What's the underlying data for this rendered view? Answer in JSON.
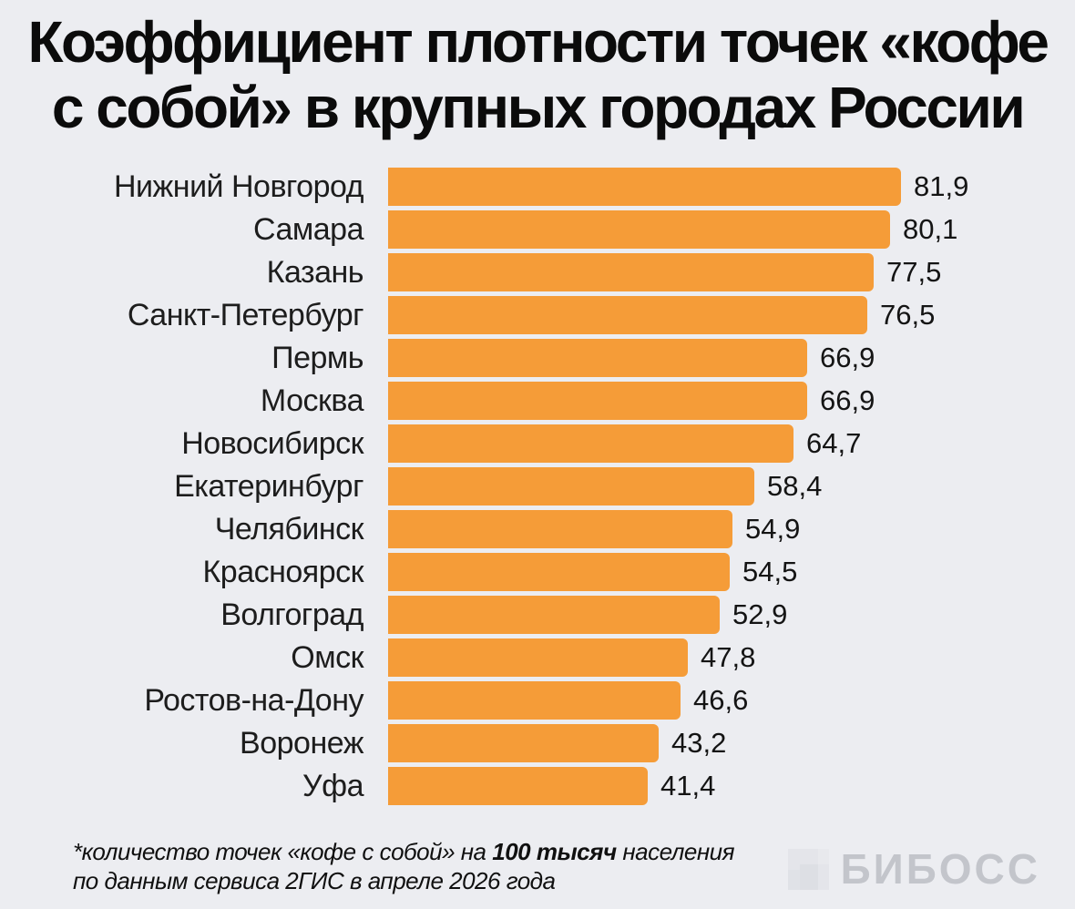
{
  "title": {
    "line1": "Коэффициент плотности точек «кофе",
    "line2": "с собой» в крупных городах России"
  },
  "chart_data": {
    "type": "bar",
    "orientation": "horizontal",
    "title": "Коэффициент плотности точек «кофе с собой» в крупных городах России",
    "xlabel": "",
    "ylabel": "",
    "xlim": [
      0,
      82
    ],
    "grid": false,
    "legend": false,
    "bar_color": "#F59C38",
    "categories": [
      "Нижний Новгород",
      "Самара",
      "Казань",
      "Санкт-Петербург",
      "Пермь",
      "Москва",
      "Новосибирск",
      "Екатеринбург",
      "Челябинск",
      "Красноярск",
      "Волгоград",
      "Омск",
      "Ростов-на-Дону",
      "Воронеж",
      "Уфа"
    ],
    "values": [
      81.9,
      80.1,
      77.5,
      76.5,
      66.9,
      66.9,
      64.7,
      58.4,
      54.9,
      54.5,
      52.9,
      47.8,
      46.6,
      43.2,
      41.4
    ],
    "value_labels": [
      "81,9",
      "80,1",
      "77,5",
      "76,5",
      "66,9",
      "66,9",
      "64,7",
      "58,4",
      "54,9",
      "54,5",
      "52,9",
      "47,8",
      "46,6",
      "43,2",
      "41,4"
    ]
  },
  "footnote": {
    "line1_prefix": "*количество точек «кофе с собой» на ",
    "line1_bold": "100 тысяч",
    "line1_suffix": " населения",
    "line2": "по данным сервиса 2ГИС в апреле 2026 года"
  },
  "logo": {
    "text": "БИБОСС"
  },
  "colors": {
    "background": "#ECEDF1",
    "bar": "#F59C38",
    "title_text": "#0B0B0B",
    "label_text": "#1D1D1D",
    "value_text": "#141414",
    "logo_text": "#C3C5CB",
    "logo_icon": "#E4E5EA"
  }
}
